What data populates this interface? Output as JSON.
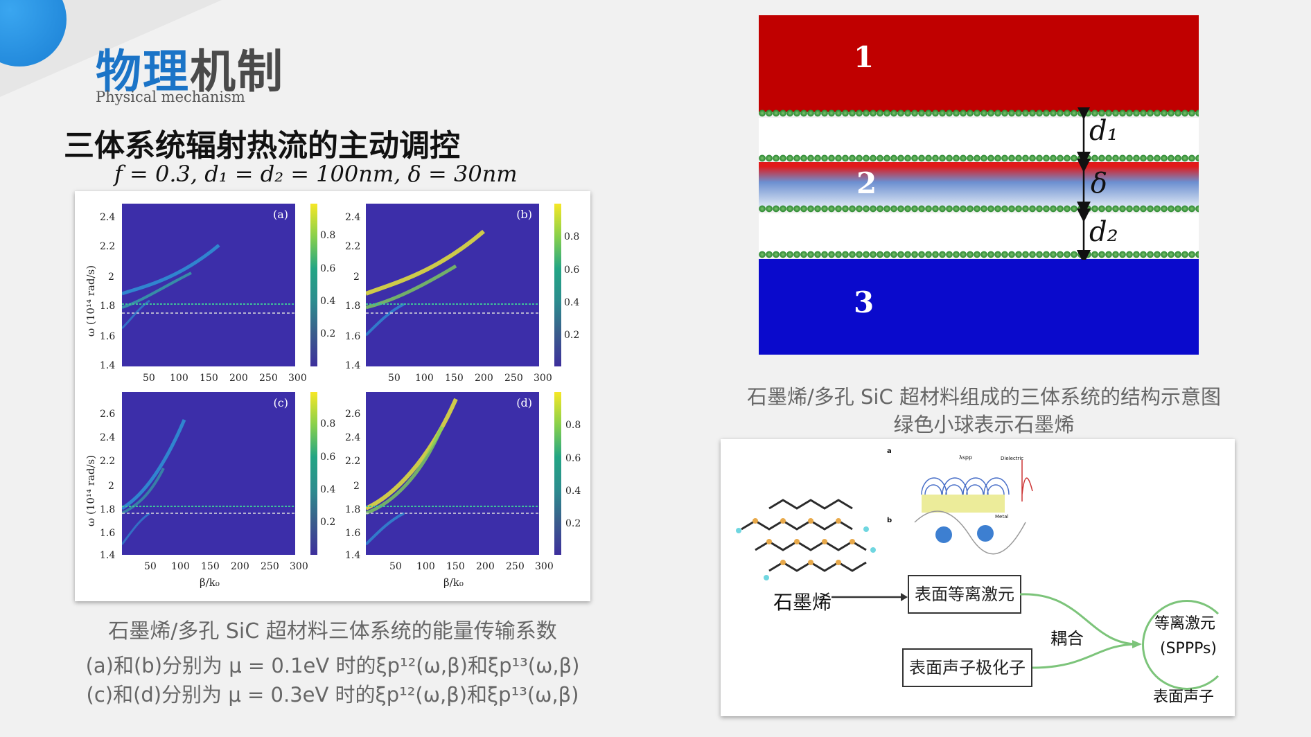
{
  "header": {
    "title_blue": "物理",
    "title_dark": "机制",
    "subtitle": "Physical mechanism"
  },
  "heading": "三体系统辐射热流的主动调控",
  "formula": "f = 0.3, d₁ = d₂ = 100nm, δ = 30nm",
  "figure_left": {
    "panels": [
      {
        "tag": "(a)",
        "y_ticks": [
          "2.4",
          "2.2",
          "2",
          "1.8",
          "1.6",
          "1.4"
        ],
        "x_ticks": [
          "50",
          "100",
          "150",
          "200",
          "250",
          "300"
        ],
        "cbar_ticks": [
          "0.8",
          "0.6",
          "0.4",
          "0.2"
        ]
      },
      {
        "tag": "(b)",
        "y_ticks": [
          "2.4",
          "2.2",
          "2",
          "1.8",
          "1.6",
          "1.4"
        ],
        "x_ticks": [
          "50",
          "100",
          "150",
          "200",
          "250",
          "300"
        ],
        "cbar_ticks": [
          "0.8",
          "0.6",
          "0.4",
          "0.2"
        ]
      },
      {
        "tag": "(c)",
        "y_ticks": [
          "2.6",
          "2.4",
          "2.2",
          "2",
          "1.8",
          "1.6",
          "1.4"
        ],
        "x_ticks": [
          "50",
          "100",
          "150",
          "200",
          "250",
          "300"
        ],
        "cbar_ticks": [
          "0.8",
          "0.6",
          "0.4",
          "0.2"
        ]
      },
      {
        "tag": "(d)",
        "y_ticks": [
          "2.6",
          "2.4",
          "2.2",
          "2",
          "1.8",
          "1.6",
          "1.4"
        ],
        "x_ticks": [
          "50",
          "100",
          "150",
          "200",
          "250",
          "300"
        ],
        "cbar_ticks": [
          "0.8",
          "0.6",
          "0.4",
          "0.2"
        ]
      }
    ],
    "y_label": "ω (10¹⁴ rad/s)",
    "x_label": "β/k₀"
  },
  "caption_left": {
    "line1": "石墨烯/多孔 SiC 超材料三体系统的能量传输系数",
    "line2": "(a)和(b)分别为 μ = 0.1eV 时的ξp¹²(ω,β)和ξp¹³(ω,β)",
    "line3": "(c)和(d)分别为 μ = 0.3eV 时的ξp¹²(ω,β)和ξp¹³(ω,β)"
  },
  "structure": {
    "layer1": "1",
    "layer2": "2",
    "layer3": "3",
    "d1": "d₁",
    "delta": "δ",
    "d2": "d₂",
    "colors": {
      "layer1": "#c00000",
      "layer3": "#0a0acc",
      "balls": "#3c9a44"
    }
  },
  "caption_right": {
    "line1": "石墨烯/多孔 SiC 超材料组成的三体系统的结构示意图",
    "line2": "绿色小球表示石墨烯"
  },
  "diagram": {
    "graphene": "石墨烯",
    "surface_plasmon": "表面等离激元",
    "surface_phonon_polariton": "表面声子极化子",
    "coupling": "耦合",
    "result_line1": "等离激元",
    "result_line2": "(SPPPs)",
    "surface_phonon": "表面声子",
    "inset_a": "a",
    "inset_b": "b",
    "inset_dielectric": "Dielectric",
    "inset_metal": "Metal",
    "inset_lambda": "λspp"
  }
}
